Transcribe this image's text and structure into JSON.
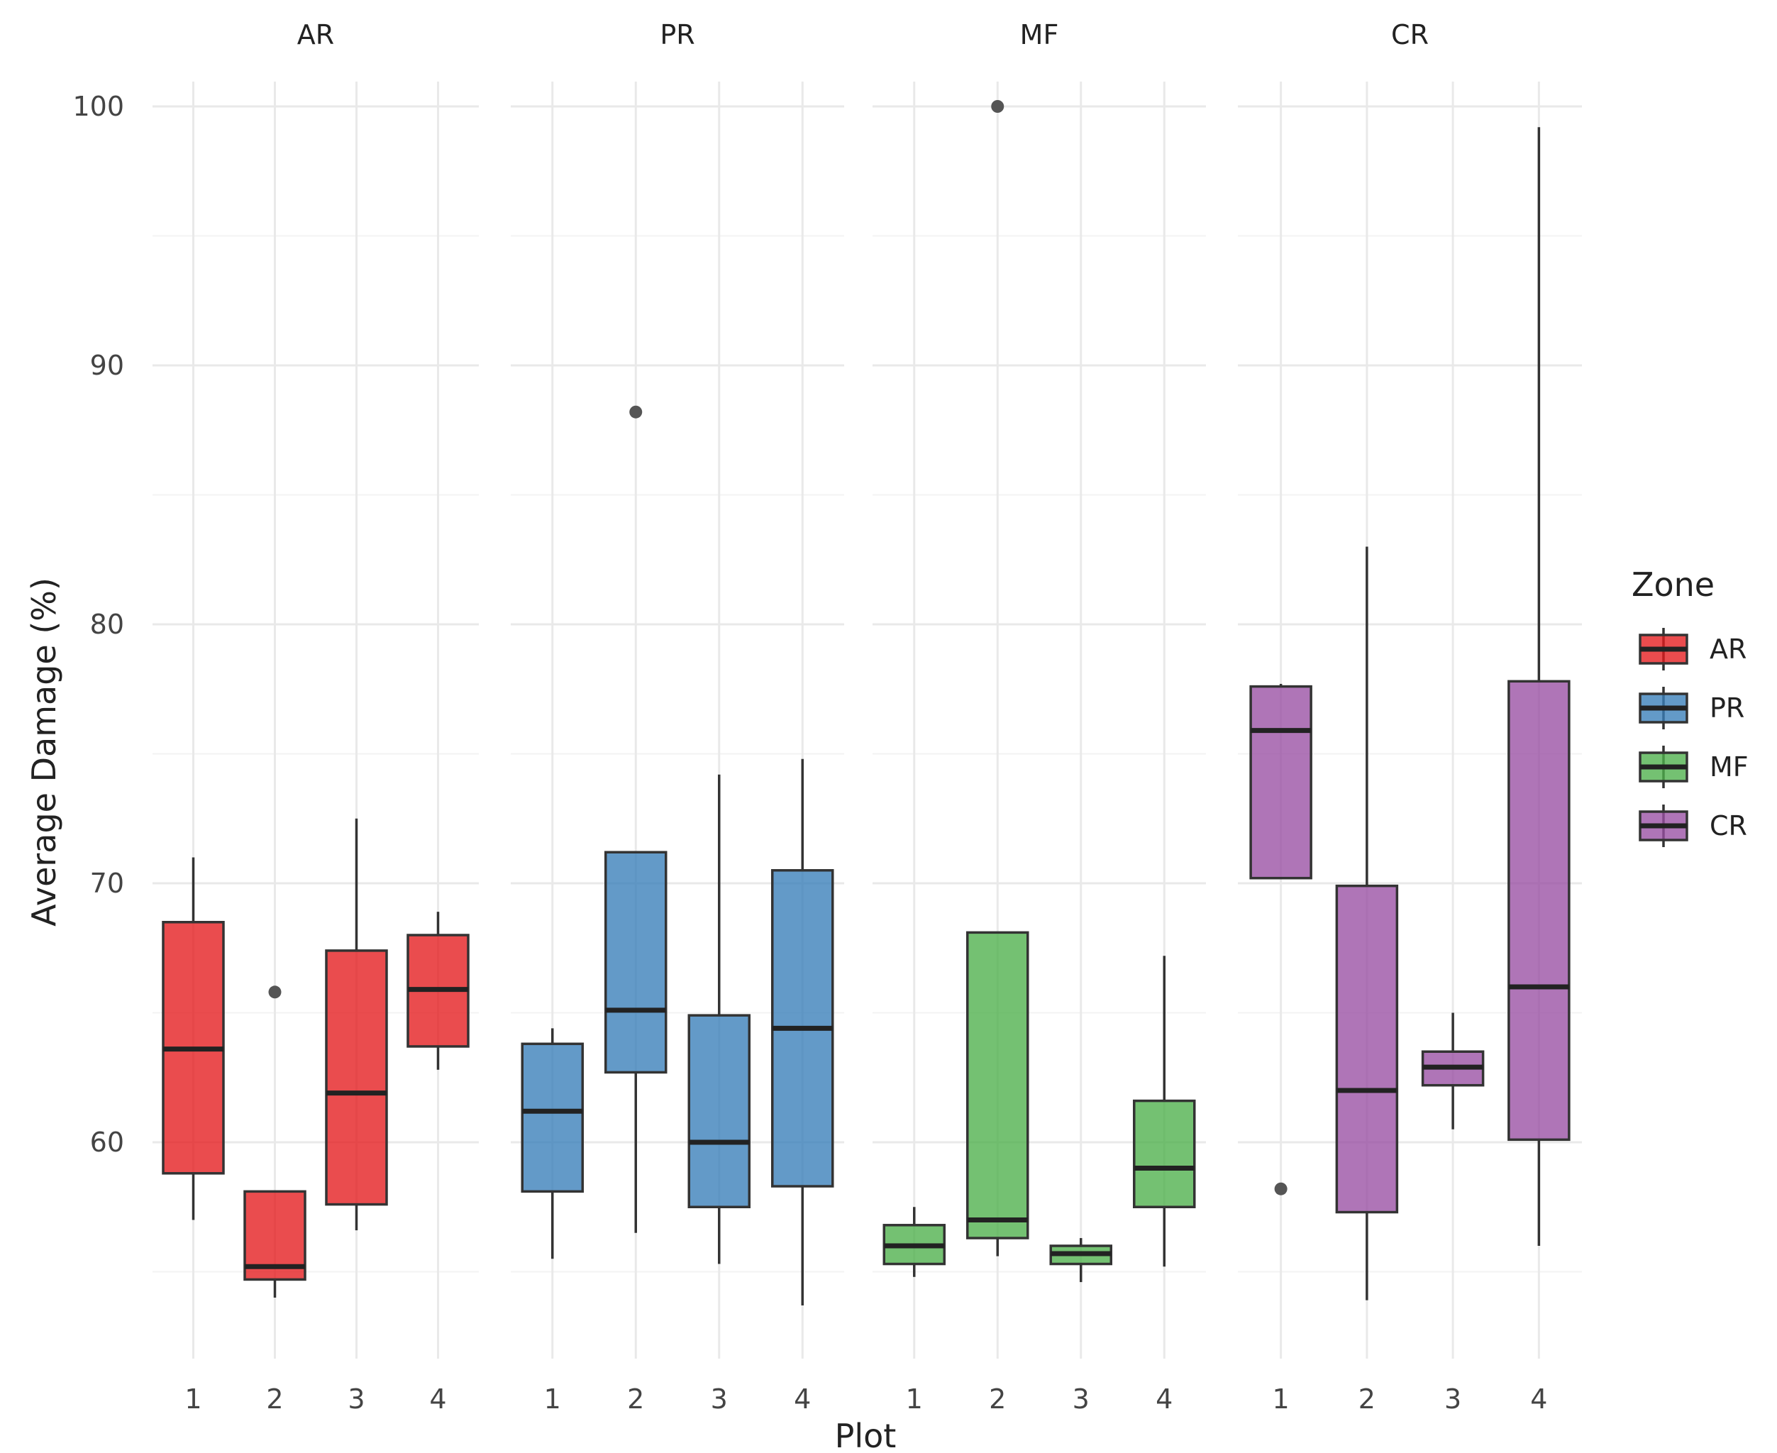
{
  "chart_data": {
    "type": "boxplot",
    "facet_by": "Zone",
    "facets": [
      "AR",
      "PR",
      "MF",
      "CR"
    ],
    "xlabel": "Plot",
    "ylabel": "Average Damage (%)",
    "categories": [
      "1",
      "2",
      "3",
      "4"
    ],
    "yticks": [
      "60",
      "70",
      "80",
      "90",
      "100"
    ],
    "ylim": [
      51.5,
      102
    ],
    "grid": true,
    "legend": {
      "title": "Zone",
      "position": "right",
      "entries": [
        {
          "label": "AR",
          "color": "#e41a1c"
        },
        {
          "label": "PR",
          "color": "#377eb8"
        },
        {
          "label": "MF",
          "color": "#4daf4a"
        },
        {
          "label": "CR",
          "color": "#984ea3"
        }
      ]
    },
    "series": [
      {
        "zone": "AR",
        "color": "#e41a1c",
        "boxes": [
          {
            "plot": "1",
            "whisker_low": 57.0,
            "q1": 58.8,
            "median": 63.6,
            "q3": 68.5,
            "whisker_high": 71.0,
            "outliers": []
          },
          {
            "plot": "2",
            "whisker_low": 54.0,
            "q1": 54.7,
            "median": 55.2,
            "q3": 58.1,
            "whisker_high": 58.1,
            "outliers": [
              65.8
            ]
          },
          {
            "plot": "3",
            "whisker_low": 56.6,
            "q1": 57.6,
            "median": 61.9,
            "q3": 67.4,
            "whisker_high": 72.5,
            "outliers": []
          },
          {
            "plot": "4",
            "whisker_low": 62.8,
            "q1": 63.7,
            "median": 65.9,
            "q3": 68.0,
            "whisker_high": 68.9,
            "outliers": []
          }
        ]
      },
      {
        "zone": "PR",
        "color": "#377eb8",
        "boxes": [
          {
            "plot": "1",
            "whisker_low": 55.5,
            "q1": 58.1,
            "median": 61.2,
            "q3": 63.8,
            "whisker_high": 64.4,
            "outliers": []
          },
          {
            "plot": "2",
            "whisker_low": 56.5,
            "q1": 62.7,
            "median": 65.1,
            "q3": 71.2,
            "whisker_high": 71.2,
            "outliers": [
              88.2
            ]
          },
          {
            "plot": "3",
            "whisker_low": 55.3,
            "q1": 57.5,
            "median": 60.0,
            "q3": 64.9,
            "whisker_high": 74.2,
            "outliers": []
          },
          {
            "plot": "4",
            "whisker_low": 53.7,
            "q1": 58.3,
            "median": 64.4,
            "q3": 70.5,
            "whisker_high": 74.8,
            "outliers": []
          }
        ]
      },
      {
        "zone": "MF",
        "color": "#4daf4a",
        "boxes": [
          {
            "plot": "1",
            "whisker_low": 54.8,
            "q1": 55.3,
            "median": 56.0,
            "q3": 56.8,
            "whisker_high": 57.5,
            "outliers": []
          },
          {
            "plot": "2",
            "whisker_low": 55.6,
            "q1": 56.3,
            "median": 57.0,
            "q3": 68.1,
            "whisker_high": 68.1,
            "outliers": [
              100.0
            ]
          },
          {
            "plot": "3",
            "whisker_low": 54.6,
            "q1": 55.3,
            "median": 55.7,
            "q3": 56.0,
            "whisker_high": 56.3,
            "outliers": []
          },
          {
            "plot": "4",
            "whisker_low": 55.2,
            "q1": 57.5,
            "median": 59.0,
            "q3": 61.6,
            "whisker_high": 67.2,
            "outliers": []
          }
        ]
      },
      {
        "zone": "CR",
        "color": "#984ea3",
        "boxes": [
          {
            "plot": "1",
            "whisker_low": 70.2,
            "q1": 70.2,
            "median": 75.9,
            "q3": 77.6,
            "whisker_high": 77.7,
            "outliers": [
              58.2
            ]
          },
          {
            "plot": "2",
            "whisker_low": 53.9,
            "q1": 57.3,
            "median": 62.0,
            "q3": 69.9,
            "whisker_high": 83.0,
            "outliers": []
          },
          {
            "plot": "3",
            "whisker_low": 60.5,
            "q1": 62.2,
            "median": 62.9,
            "q3": 63.5,
            "whisker_high": 65.0,
            "outliers": []
          },
          {
            "plot": "4",
            "whisker_low": 56.0,
            "q1": 60.1,
            "median": 66.0,
            "q3": 77.8,
            "whisker_high": 99.2,
            "outliers": []
          }
        ]
      }
    ]
  }
}
